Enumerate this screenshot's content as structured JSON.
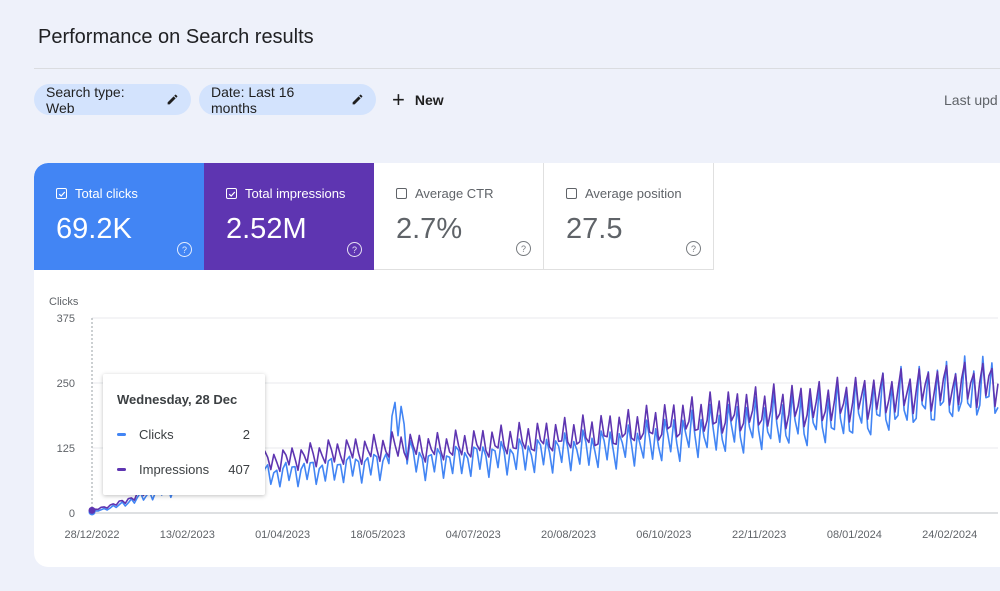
{
  "header": {
    "title": "Performance on Search results"
  },
  "filters": {
    "search_type": "Search type: Web",
    "date": "Date: Last 16 months",
    "new_label": "New",
    "last_updated": "Last upd"
  },
  "metrics": {
    "clicks": {
      "label": "Total clicks",
      "value": "69.2K",
      "color": "#4285f4"
    },
    "impressions": {
      "label": "Total impressions",
      "value": "2.52M",
      "color": "#5e35b1"
    },
    "ctr": {
      "label": "Average CTR",
      "value": "2.7%"
    },
    "position": {
      "label": "Average position",
      "value": "27.5"
    }
  },
  "tooltip": {
    "date": "Wednesday, 28 Dec",
    "rows": [
      {
        "name": "Clicks",
        "value": "2",
        "color": "#4285f4"
      },
      {
        "name": "Impressions",
        "value": "407",
        "color": "#5e35b1"
      }
    ]
  },
  "chart_data": {
    "type": "line",
    "ylabel": "Clicks",
    "yticks": [
      0,
      125,
      250,
      375
    ],
    "ylim": [
      0,
      375
    ],
    "xticks": [
      "28/12/2022",
      "13/02/2023",
      "01/04/2023",
      "18/05/2023",
      "04/07/2023",
      "20/08/2023",
      "06/10/2023",
      "22/11/2023",
      "08/01/2024",
      "24/02/2024"
    ],
    "grid": true,
    "series": [
      {
        "name": "Clicks",
        "color": "#4285f4",
        "values": [
          2,
          8,
          15,
          25,
          35,
          42,
          48,
          55,
          60,
          62,
          68,
          70,
          72,
          74,
          78,
          80,
          82,
          84,
          88,
          90,
          92,
          95,
          205,
          100,
          98,
          100,
          102,
          104,
          106,
          108,
          110,
          112,
          114,
          118,
          120,
          122,
          124,
          126,
          128,
          132,
          136,
          140,
          145,
          150,
          155,
          158,
          162,
          165,
          170,
          172,
          175,
          178,
          180,
          185,
          190,
          195,
          200,
          205,
          210,
          215,
          220,
          225,
          228,
          232,
          236,
          240
        ]
      },
      {
        "name": "Impressions",
        "color": "#5e35b1",
        "values": [
          5,
          12,
          20,
          30,
          45,
          55,
          65,
          72,
          80,
          85,
          90,
          95,
          98,
          100,
          105,
          108,
          112,
          115,
          118,
          120,
          122,
          125,
          128,
          126,
          124,
          125,
          128,
          130,
          132,
          135,
          138,
          140,
          142,
          145,
          148,
          150,
          152,
          155,
          158,
          162,
          166,
          170,
          175,
          180,
          185,
          188,
          192,
          195,
          198,
          200,
          202,
          205,
          208,
          212,
          216,
          220,
          224,
          228,
          232,
          236,
          240,
          244,
          246,
          248,
          250,
          252
        ]
      }
    ]
  }
}
